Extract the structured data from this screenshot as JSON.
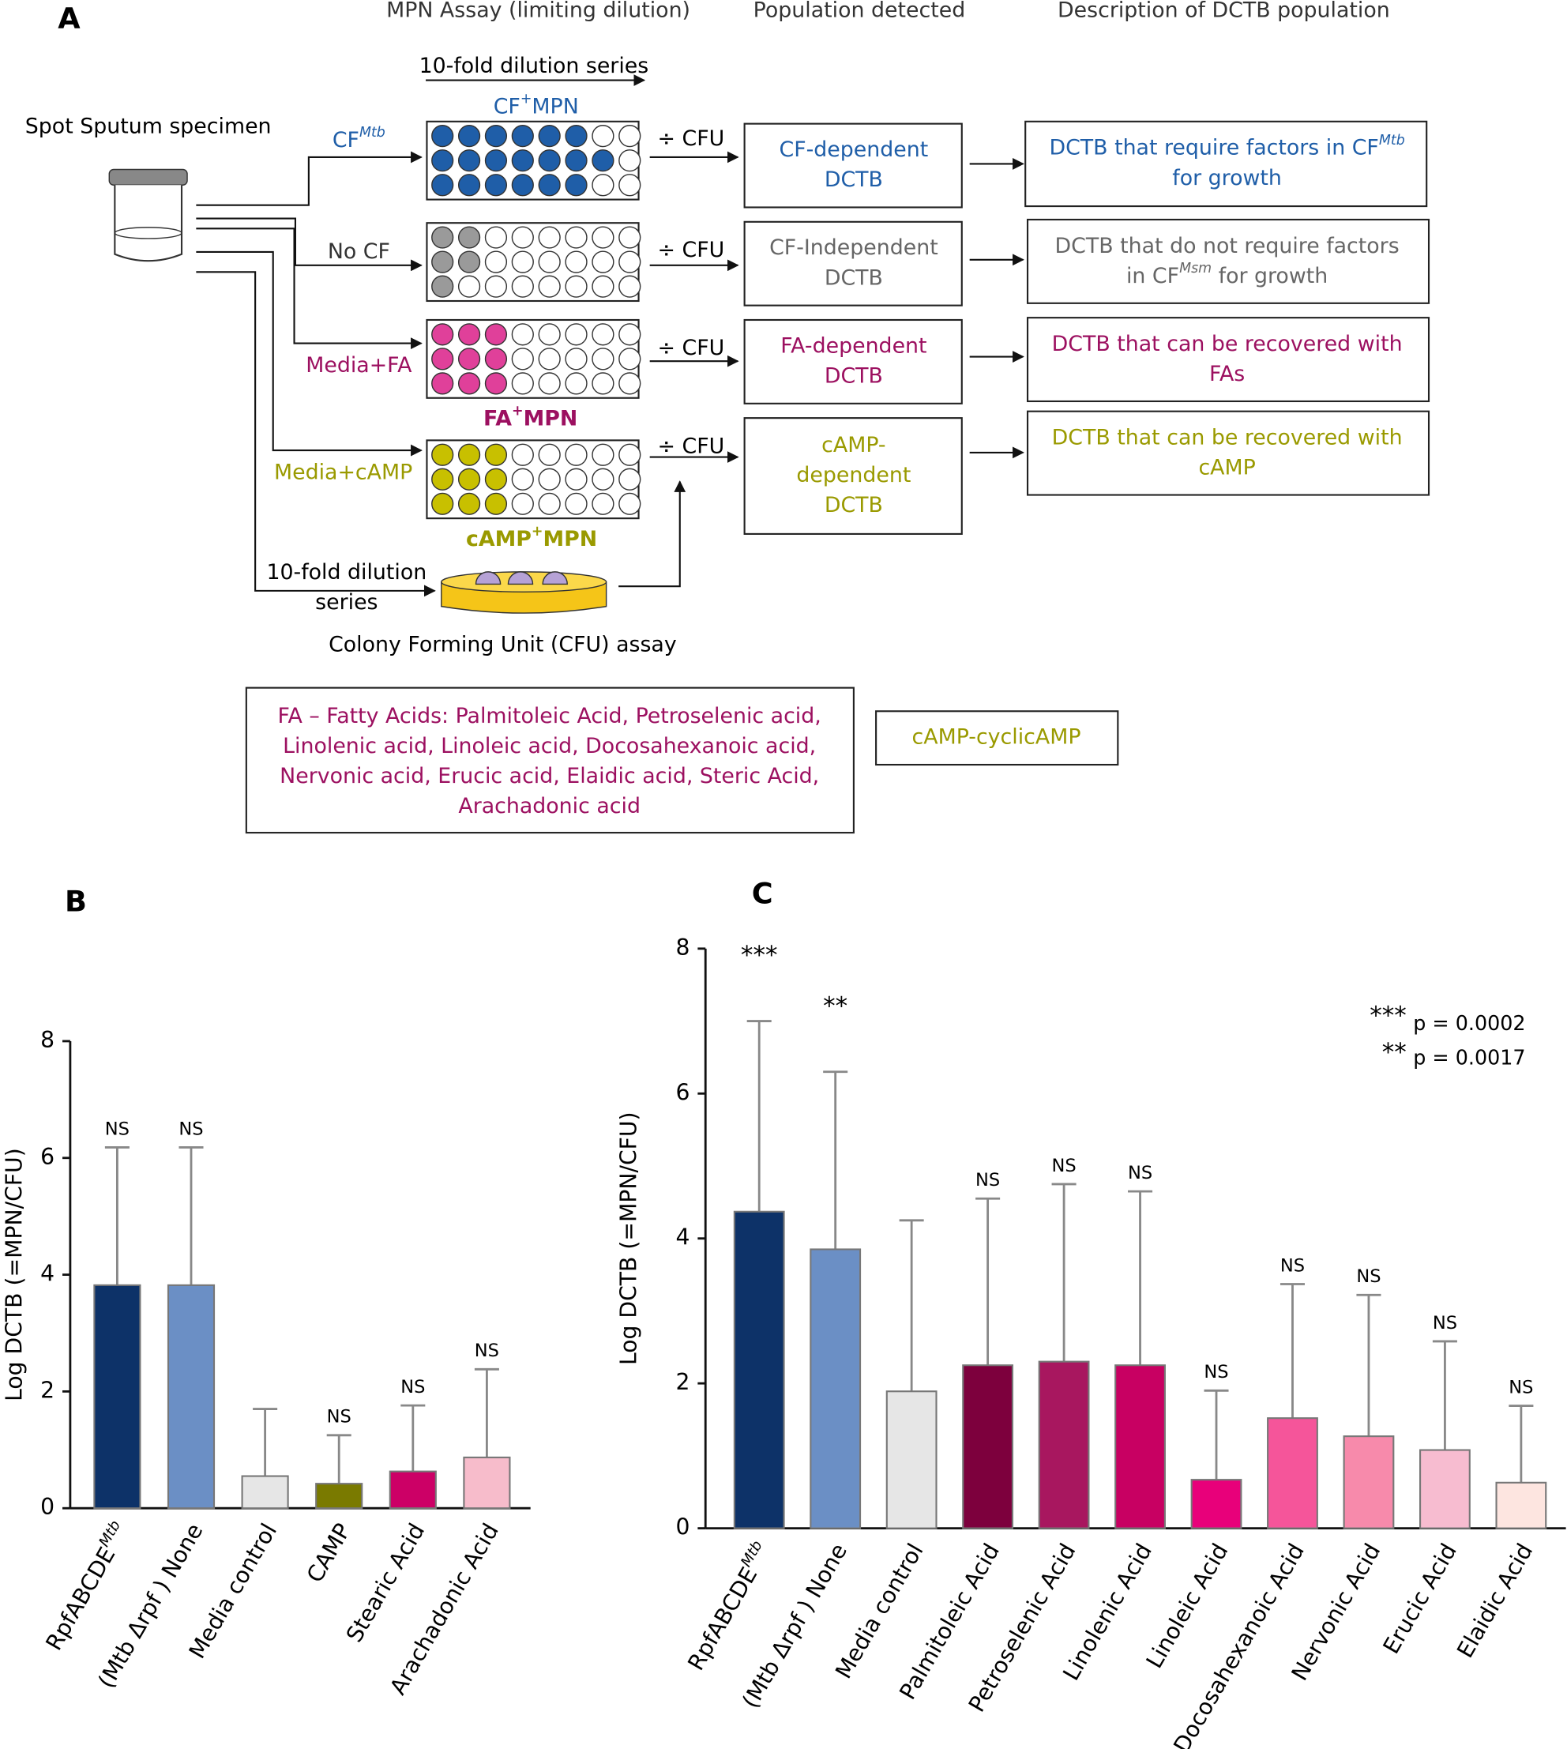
{
  "diagram": {
    "panel": "A",
    "headers": [
      "MPN Assay (limiting dilution)",
      "Population detected",
      "Description  of DCTB population"
    ],
    "dilution_label": "10-fold dilution series",
    "specimen": "Spot Sputum specimen",
    "branches": [
      {
        "text": "CF",
        "sup": "Mtb"
      },
      {
        "text": "No CF"
      },
      {
        "text": "Media+FA"
      },
      {
        "text": "Media+cAMP"
      }
    ],
    "plates": [
      {
        "text": "CF",
        "sup": "+",
        "after": "MPN"
      },
      {
        "text": "FA",
        "sup": "+",
        "after": "MPN"
      },
      {
        "text": "cAMP",
        "sup": "+",
        "after": "MPN"
      }
    ],
    "divide": "÷ CFU",
    "cfu_dilution": [
      "10-fold dilution",
      "series"
    ],
    "cfu_assay": "Colony Forming Unit (CFU) assay",
    "populations": [
      [
        "CF-dependent",
        "DCTB"
      ],
      [
        "CF-Independent",
        "DCTB"
      ],
      [
        "FA-dependent",
        "DCTB"
      ],
      [
        "cAMP-",
        "dependent",
        "DCTB"
      ]
    ],
    "descriptions": [
      [
        {
          "text": "DCTB that require factors in CF",
          "sup": "Mtb"
        },
        {
          "text": "for growth"
        }
      ],
      [
        {
          "text": "DCTB that do not require factors"
        },
        {
          "text": "in CF",
          "sup": "Msm",
          "after": " for growth"
        }
      ],
      [
        {
          "text": "DCTB that can be recovered with"
        },
        {
          "text": "FAs"
        }
      ],
      [
        {
          "text": "DCTB that can be recovered with"
        },
        {
          "text": "cAMP"
        }
      ]
    ],
    "fa_note": [
      "FA – Fatty Acids: Palmitoleic Acid, Petroselenic acid,",
      "Linolenic acid, Linoleic acid, Docosahexanoic  acid,",
      "Nervonic acid, Erucic acid, Elaidic acid, Steric Acid,",
      "Arachadonic acid"
    ],
    "camp_note": "cAMP-cyclicAMP"
  },
  "chart_data": [
    {
      "type": "bar",
      "title": "B",
      "ylabel": "Log DCTB (=MPN/CFU)",
      "categories": [
        {
          "text": "RpfABCDE",
          "sup": "Mtb"
        },
        "(Mtb Δrpf ) None",
        "Media control",
        "CAMP",
        "Stearic Acid",
        "Arachadonic Acid"
      ],
      "values": [
        3.82,
        3.82,
        0.55,
        0.42,
        0.63,
        0.87
      ],
      "errors": [
        2.36,
        2.36,
        1.15,
        0.83,
        1.13,
        1.51
      ],
      "annotations": [
        "NS",
        "NS",
        null,
        "NS",
        "NS",
        "NS"
      ],
      "colors": [
        "#0d3268",
        "#6b8fc5",
        "#e6e6e6",
        "#7a7a00",
        "#cc0066",
        "#f7bccb"
      ],
      "ylim": [
        0,
        8
      ],
      "yticks": [
        0,
        2,
        4,
        6,
        8
      ]
    },
    {
      "type": "bar",
      "title": "C",
      "ylabel": "Log DCTB (=MPN/CFU)",
      "categories": [
        {
          "text": "RpfABCDE",
          "sup": "Mtb"
        },
        "(Mtb Δrpf ) None",
        "Media control",
        "Palmitoleic Acid",
        "Petroselenic Acid",
        "Linolenic Acid",
        "Linoleic Acid",
        "Docosahexanoic Acid",
        "Nervonic Acid",
        "Erucic Acid",
        "Elaidic Acid"
      ],
      "values": [
        4.37,
        3.85,
        1.89,
        2.25,
        2.3,
        2.25,
        0.67,
        1.52,
        1.27,
        1.08,
        0.63
      ],
      "errors": [
        2.63,
        2.45,
        2.36,
        2.3,
        2.45,
        2.4,
        1.23,
        1.85,
        1.95,
        1.5,
        1.06
      ],
      "annotations": [
        "***",
        "**",
        null,
        "NS",
        "NS",
        "NS",
        "NS",
        "NS",
        "NS",
        "NS",
        "NS"
      ],
      "colors": [
        "#0d3268",
        "#6b8fc5",
        "#e6e6e6",
        "#7d003d",
        "#a8175f",
        "#c80062",
        "#e8007a",
        "#f5559a",
        "#f78aab",
        "#f7bcd0",
        "#fde5e0"
      ],
      "legend": [
        {
          "stars": "***",
          "text": "p = 0.0002"
        },
        {
          "stars": "**",
          "text": "p = 0.0017"
        }
      ],
      "ylim": [
        0,
        8
      ],
      "yticks": [
        0,
        2,
        4,
        6,
        8
      ]
    }
  ]
}
